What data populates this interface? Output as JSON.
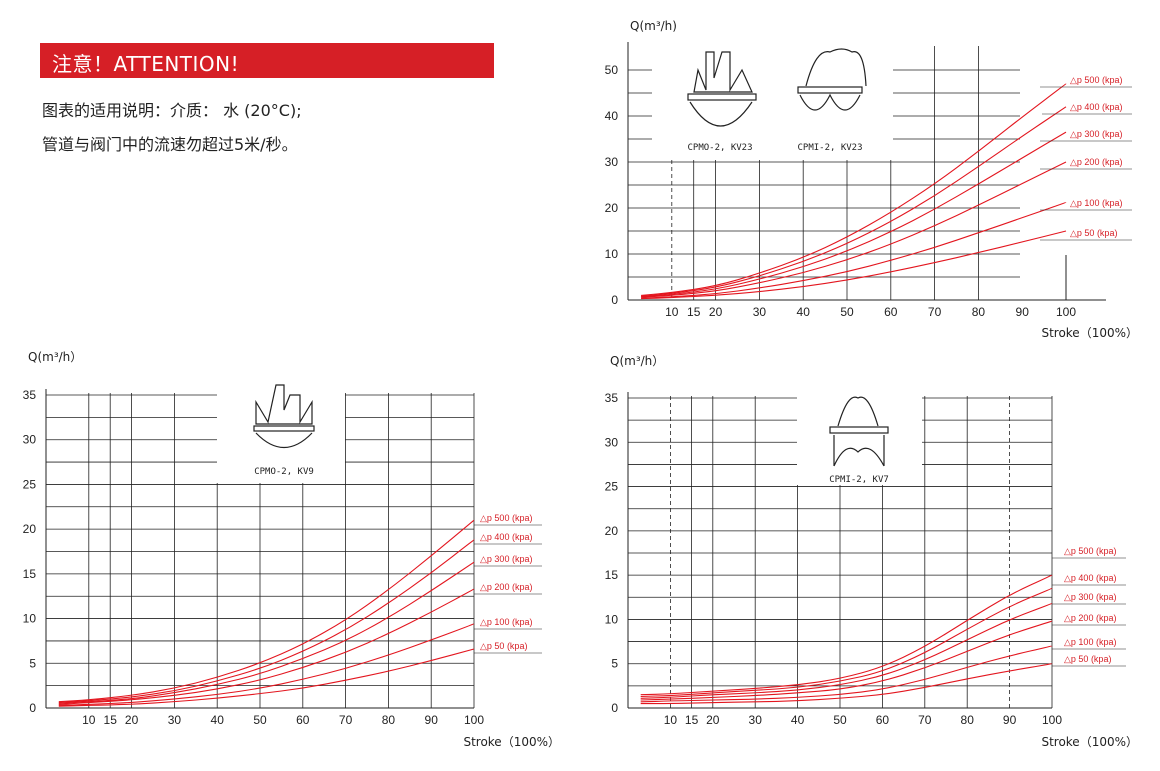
{
  "attention": {
    "title": "注意！ATTENTION!",
    "line1": "图表的适用说明：介质： 水 (20°C);",
    "line2": "管道与阀门中的流速勿超过5米/秒。"
  },
  "colors": {
    "accent": "#d61f26",
    "curve": "#e3161f",
    "grid": "#222222"
  },
  "chart_data": [
    {
      "type": "line",
      "ylabel": "Q(m³/h)",
      "xlabel": "Stroke（100%）",
      "x_ticks": [
        10,
        15,
        20,
        30,
        40,
        50,
        60,
        70,
        80,
        90,
        100
      ],
      "y_ticks": [
        0,
        10,
        20,
        30,
        40,
        50
      ],
      "ylim": [
        0,
        50
      ],
      "dashed_x": [
        10,
        90
      ],
      "valve_labels": [
        "CPMO-2, KV23",
        "CPMI-2, KV23"
      ],
      "x": [
        0,
        10,
        20,
        30,
        40,
        50,
        60,
        70,
        80,
        90,
        100
      ],
      "series": [
        {
          "name": "△p 500 (kpa)",
          "values": [
            1.0,
            1.6,
            3.0,
            5.8,
            9.2,
            13.6,
            19.0,
            25.2,
            32.3,
            39.8,
            47.0
          ]
        },
        {
          "name": "△p 400 (kpa)",
          "values": [
            0.8,
            1.4,
            2.7,
            5.2,
            8.3,
            12.2,
            17.0,
            22.6,
            29.0,
            35.6,
            42.0
          ]
        },
        {
          "name": "△p 300 (kpa)",
          "values": [
            0.7,
            1.2,
            2.3,
            4.5,
            7.2,
            10.6,
            14.8,
            19.7,
            25.2,
            30.9,
            36.5
          ]
        },
        {
          "name": "△p 200 (kpa)",
          "values": [
            0.6,
            1.0,
            1.9,
            3.7,
            5.9,
            8.7,
            12.1,
            16.1,
            20.6,
            25.3,
            30.0
          ]
        },
        {
          "name": "△p 100 (kpa)",
          "values": [
            0.4,
            0.7,
            1.3,
            2.6,
            4.2,
            6.1,
            8.6,
            11.4,
            14.6,
            17.9,
            21.2
          ]
        },
        {
          "name": "△p 50 (kpa)",
          "values": [
            0.3,
            0.5,
            1.0,
            1.8,
            2.9,
            4.3,
            6.1,
            8.1,
            10.3,
            12.6,
            15.0
          ]
        }
      ]
    },
    {
      "type": "line",
      "ylabel": "Q(m³/h）",
      "xlabel": "Stroke（100%）",
      "x_ticks": [
        10,
        15,
        20,
        30,
        40,
        50,
        60,
        70,
        80,
        90,
        100
      ],
      "y_ticks": [
        0,
        5,
        10,
        15,
        20,
        25,
        30,
        35
      ],
      "ylim": [
        0,
        35
      ],
      "dashed_x": [],
      "valve_labels": [
        "CPMO-2, KV9"
      ],
      "x": [
        0,
        10,
        20,
        30,
        40,
        50,
        60,
        70,
        80,
        90,
        100
      ],
      "series": [
        {
          "name": "△p 500 (kpa)",
          "values": [
            0.7,
            0.9,
            1.4,
            2.2,
            3.4,
            5.0,
            7.1,
            9.8,
            13.2,
            17.0,
            21.0
          ]
        },
        {
          "name": "△p 400 (kpa)",
          "values": [
            0.6,
            0.8,
            1.2,
            1.9,
            3.0,
            4.4,
            6.3,
            8.7,
            11.7,
            15.1,
            18.8
          ]
        },
        {
          "name": "△p 300 (kpa)",
          "values": [
            0.5,
            0.7,
            1.0,
            1.7,
            2.6,
            3.8,
            5.5,
            7.5,
            10.1,
            13.1,
            16.3
          ]
        },
        {
          "name": "△p 200 (kpa)",
          "values": [
            0.4,
            0.6,
            0.9,
            1.4,
            2.1,
            3.1,
            4.5,
            6.2,
            8.3,
            10.7,
            13.3
          ]
        },
        {
          "name": "△p 100 (kpa)",
          "values": [
            0.3,
            0.4,
            0.6,
            1.0,
            1.5,
            2.2,
            3.2,
            4.4,
            5.9,
            7.6,
            9.4
          ]
        },
        {
          "name": "△p 50 (kpa)",
          "values": [
            0.2,
            0.3,
            0.4,
            0.7,
            1.1,
            1.6,
            2.2,
            3.1,
            4.1,
            5.3,
            6.6
          ]
        }
      ]
    },
    {
      "type": "line",
      "ylabel": "Q(m³/h）",
      "xlabel": "Stroke（100%）",
      "x_ticks": [
        10,
        15,
        20,
        30,
        40,
        50,
        60,
        70,
        80,
        90,
        100
      ],
      "y_ticks": [
        0,
        5,
        10,
        15,
        20,
        25,
        30,
        35
      ],
      "ylim": [
        0,
        35
      ],
      "dashed_x": [
        10,
        90
      ],
      "valve_labels": [
        "CPMI-2, KV7"
      ],
      "x": [
        0,
        10,
        20,
        30,
        40,
        50,
        60,
        70,
        80,
        90,
        100
      ],
      "series": [
        {
          "name": "△p 500 (kpa)",
          "values": [
            1.5,
            1.6,
            1.9,
            2.2,
            2.6,
            3.3,
            4.6,
            6.9,
            9.9,
            12.8,
            15.0
          ]
        },
        {
          "name": "△p 400 (kpa)",
          "values": [
            1.3,
            1.4,
            1.7,
            2.0,
            2.3,
            3.0,
            4.1,
            6.2,
            8.9,
            11.5,
            13.5
          ]
        },
        {
          "name": "△p 300 (kpa)",
          "values": [
            1.1,
            1.2,
            1.5,
            1.7,
            2.0,
            2.6,
            3.6,
            5.4,
            7.7,
            10.0,
            11.8
          ]
        },
        {
          "name": "△p 200 (kpa)",
          "values": [
            0.9,
            1.0,
            1.2,
            1.4,
            1.7,
            2.1,
            3.0,
            4.5,
            6.4,
            8.3,
            9.8
          ]
        },
        {
          "name": "△p 100 (kpa)",
          "values": [
            0.7,
            0.8,
            0.9,
            1.0,
            1.2,
            1.5,
            2.1,
            3.2,
            4.6,
            5.9,
            7.0
          ]
        },
        {
          "name": "△p 50 (kpa)",
          "values": [
            0.5,
            0.5,
            0.6,
            0.7,
            0.8,
            1.1,
            1.5,
            2.3,
            3.3,
            4.2,
            5.0
          ]
        }
      ]
    }
  ]
}
